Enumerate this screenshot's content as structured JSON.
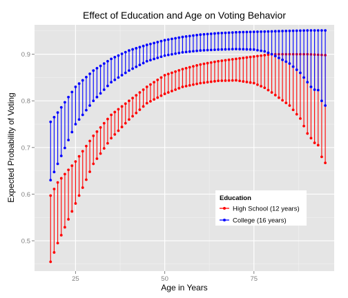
{
  "chart_data": {
    "type": "line",
    "title": "Effect of Education and Age on Voting Behavior",
    "xlabel": "Age in Years",
    "ylabel": "Expected Probability of Voting",
    "xlim": [
      13.5,
      97.5
    ],
    "ylim": [
      0.435,
      0.963
    ],
    "xticks": [
      25,
      50,
      75
    ],
    "xtick_labels": [
      "25",
      "50",
      "75"
    ],
    "yticks": [
      0.5,
      0.6,
      0.7,
      0.8,
      0.9
    ],
    "ytick_labels": [
      "0.5",
      "0.6",
      "0.7",
      "0.8",
      "0.9"
    ],
    "grid": true,
    "background": "#e5e5e5",
    "legend": {
      "title": "Education",
      "placement": "bottom-right",
      "entries": [
        "High School (12 years)",
        "College (16 years)"
      ]
    },
    "age_range": [
      18,
      95
    ],
    "series": [
      {
        "name": "High School (12 years)",
        "color": "#ff0000",
        "upper_anchors": [
          [
            18,
            0.597
          ],
          [
            20,
            0.625
          ],
          [
            25,
            0.67
          ],
          [
            30,
            0.725
          ],
          [
            35,
            0.77
          ],
          [
            40,
            0.8
          ],
          [
            45,
            0.83
          ],
          [
            50,
            0.855
          ],
          [
            55,
            0.868
          ],
          [
            60,
            0.878
          ],
          [
            65,
            0.885
          ],
          [
            70,
            0.89
          ],
          [
            75,
            0.895
          ],
          [
            78,
            0.898
          ],
          [
            80,
            0.9
          ],
          [
            85,
            0.9
          ],
          [
            90,
            0.9
          ],
          [
            95,
            0.898
          ]
        ],
        "lower_anchors": [
          [
            18,
            0.455
          ],
          [
            20,
            0.495
          ],
          [
            25,
            0.58
          ],
          [
            30,
            0.665
          ],
          [
            35,
            0.72
          ],
          [
            40,
            0.76
          ],
          [
            45,
            0.795
          ],
          [
            50,
            0.815
          ],
          [
            55,
            0.83
          ],
          [
            60,
            0.838
          ],
          [
            65,
            0.843
          ],
          [
            70,
            0.844
          ],
          [
            75,
            0.838
          ],
          [
            78,
            0.828
          ],
          [
            80,
            0.818
          ],
          [
            85,
            0.79
          ],
          [
            88,
            0.762
          ],
          [
            90,
            0.73
          ],
          [
            92,
            0.71
          ],
          [
            93,
            0.705
          ],
          [
            94,
            0.68
          ],
          [
            95,
            0.667
          ]
        ]
      },
      {
        "name": "College (16 years)",
        "color": "#0000ff",
        "upper_anchors": [
          [
            18,
            0.755
          ],
          [
            20,
            0.775
          ],
          [
            25,
            0.83
          ],
          [
            30,
            0.865
          ],
          [
            35,
            0.89
          ],
          [
            40,
            0.908
          ],
          [
            45,
            0.92
          ],
          [
            50,
            0.93
          ],
          [
            55,
            0.937
          ],
          [
            60,
            0.942
          ],
          [
            65,
            0.945
          ],
          [
            70,
            0.947
          ],
          [
            75,
            0.948
          ],
          [
            80,
            0.949
          ],
          [
            85,
            0.95
          ],
          [
            90,
            0.951
          ],
          [
            95,
            0.951
          ]
        ],
        "lower_anchors": [
          [
            18,
            0.63
          ],
          [
            20,
            0.665
          ],
          [
            25,
            0.75
          ],
          [
            30,
            0.8
          ],
          [
            35,
            0.84
          ],
          [
            40,
            0.865
          ],
          [
            45,
            0.885
          ],
          [
            50,
            0.897
          ],
          [
            55,
            0.904
          ],
          [
            60,
            0.908
          ],
          [
            65,
            0.91
          ],
          [
            70,
            0.911
          ],
          [
            75,
            0.91
          ],
          [
            78,
            0.906
          ],
          [
            80,
            0.9
          ],
          [
            85,
            0.88
          ],
          [
            88,
            0.86
          ],
          [
            90,
            0.84
          ],
          [
            91,
            0.83
          ],
          [
            92,
            0.824
          ],
          [
            93,
            0.823
          ],
          [
            94,
            0.8
          ],
          [
            95,
            0.79
          ]
        ]
      }
    ]
  }
}
